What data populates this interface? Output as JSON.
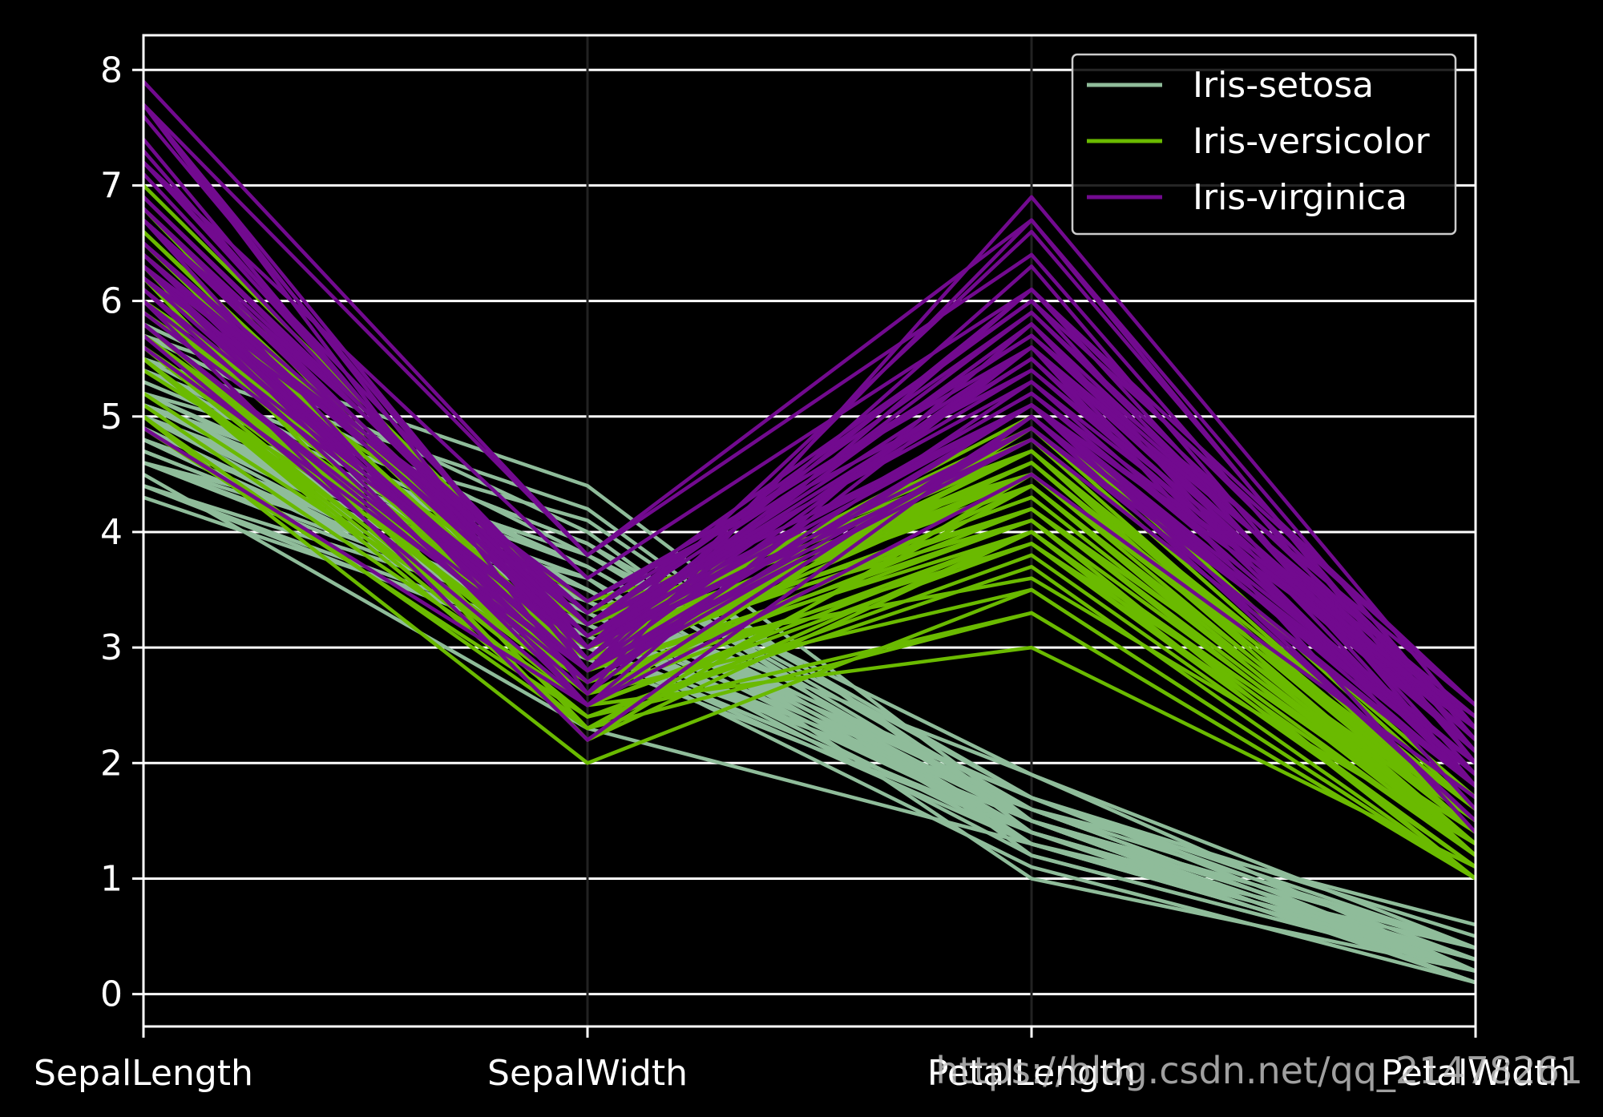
{
  "chart_data": {
    "type": "parallel_coordinates",
    "axes": [
      "SepalLength",
      "SepalWidth",
      "PetalLength",
      "PetalWidth"
    ],
    "y_ticks": [
      0,
      1,
      2,
      3,
      4,
      5,
      6,
      7,
      8
    ],
    "ylim": [
      -0.28,
      8.3
    ],
    "grid": true,
    "legend_position": "top-right",
    "background": "#000000",
    "series": [
      {
        "name": "Iris-setosa",
        "color": "#8fbc9a",
        "records": [
          [
            5.1,
            3.5,
            1.4,
            0.2
          ],
          [
            4.9,
            3.0,
            1.4,
            0.2
          ],
          [
            4.7,
            3.2,
            1.3,
            0.2
          ],
          [
            4.6,
            3.1,
            1.5,
            0.2
          ],
          [
            5.0,
            3.6,
            1.4,
            0.2
          ],
          [
            5.4,
            3.9,
            1.7,
            0.4
          ],
          [
            4.6,
            3.4,
            1.4,
            0.3
          ],
          [
            5.0,
            3.4,
            1.5,
            0.2
          ],
          [
            4.4,
            2.9,
            1.4,
            0.2
          ],
          [
            4.9,
            3.1,
            1.5,
            0.1
          ],
          [
            5.4,
            3.7,
            1.5,
            0.2
          ],
          [
            4.8,
            3.4,
            1.6,
            0.2
          ],
          [
            4.8,
            3.0,
            1.4,
            0.1
          ],
          [
            4.3,
            3.0,
            1.1,
            0.1
          ],
          [
            5.8,
            4.0,
            1.2,
            0.2
          ],
          [
            5.7,
            4.4,
            1.5,
            0.4
          ],
          [
            5.4,
            3.9,
            1.3,
            0.4
          ],
          [
            5.1,
            3.5,
            1.4,
            0.3
          ],
          [
            5.7,
            3.8,
            1.7,
            0.3
          ],
          [
            5.1,
            3.8,
            1.5,
            0.3
          ],
          [
            5.4,
            3.4,
            1.7,
            0.2
          ],
          [
            5.1,
            3.7,
            1.5,
            0.4
          ],
          [
            4.6,
            3.6,
            1.0,
            0.2
          ],
          [
            5.1,
            3.3,
            1.7,
            0.5
          ],
          [
            4.8,
            3.4,
            1.9,
            0.2
          ],
          [
            5.0,
            3.0,
            1.6,
            0.2
          ],
          [
            5.0,
            3.4,
            1.6,
            0.4
          ],
          [
            5.2,
            3.5,
            1.5,
            0.2
          ],
          [
            5.2,
            3.4,
            1.4,
            0.2
          ],
          [
            4.7,
            3.2,
            1.6,
            0.2
          ],
          [
            4.8,
            3.1,
            1.6,
            0.2
          ],
          [
            5.4,
            3.4,
            1.5,
            0.4
          ],
          [
            5.2,
            4.1,
            1.5,
            0.1
          ],
          [
            5.5,
            4.2,
            1.4,
            0.2
          ],
          [
            4.9,
            3.1,
            1.5,
            0.1
          ],
          [
            5.0,
            3.2,
            1.2,
            0.2
          ],
          [
            5.5,
            3.5,
            1.3,
            0.2
          ],
          [
            4.9,
            3.1,
            1.5,
            0.1
          ],
          [
            4.4,
            3.0,
            1.3,
            0.2
          ],
          [
            5.1,
            3.4,
            1.5,
            0.2
          ],
          [
            5.0,
            3.5,
            1.3,
            0.3
          ],
          [
            4.5,
            2.3,
            1.3,
            0.3
          ],
          [
            4.4,
            3.2,
            1.3,
            0.2
          ],
          [
            5.0,
            3.5,
            1.6,
            0.6
          ],
          [
            5.1,
            3.8,
            1.9,
            0.4
          ],
          [
            4.8,
            3.0,
            1.4,
            0.3
          ],
          [
            5.1,
            3.8,
            1.6,
            0.2
          ],
          [
            4.6,
            3.2,
            1.4,
            0.2
          ],
          [
            5.3,
            3.7,
            1.5,
            0.2
          ],
          [
            5.0,
            3.3,
            1.4,
            0.2
          ]
        ]
      },
      {
        "name": "Iris-versicolor",
        "color": "#6aba00",
        "records": [
          [
            7.0,
            3.2,
            4.7,
            1.4
          ],
          [
            6.4,
            3.2,
            4.5,
            1.5
          ],
          [
            6.9,
            3.1,
            4.9,
            1.5
          ],
          [
            5.5,
            2.3,
            4.0,
            1.3
          ],
          [
            6.5,
            2.8,
            4.6,
            1.5
          ],
          [
            5.7,
            2.8,
            4.5,
            1.3
          ],
          [
            6.3,
            3.3,
            4.7,
            1.6
          ],
          [
            4.9,
            2.4,
            3.3,
            1.0
          ],
          [
            6.6,
            2.9,
            4.6,
            1.3
          ],
          [
            5.2,
            2.7,
            3.9,
            1.4
          ],
          [
            5.0,
            2.0,
            3.5,
            1.0
          ],
          [
            5.9,
            3.0,
            4.2,
            1.5
          ],
          [
            6.0,
            2.2,
            4.0,
            1.0
          ],
          [
            6.1,
            2.9,
            4.7,
            1.4
          ],
          [
            5.6,
            2.9,
            3.6,
            1.3
          ],
          [
            6.7,
            3.1,
            4.4,
            1.4
          ],
          [
            5.6,
            3.0,
            4.5,
            1.5
          ],
          [
            5.8,
            2.7,
            4.1,
            1.0
          ],
          [
            6.2,
            2.2,
            4.5,
            1.5
          ],
          [
            5.6,
            2.5,
            3.9,
            1.1
          ],
          [
            5.9,
            3.2,
            4.8,
            1.8
          ],
          [
            6.1,
            2.8,
            4.0,
            1.3
          ],
          [
            6.3,
            2.5,
            4.9,
            1.5
          ],
          [
            6.1,
            2.8,
            4.7,
            1.2
          ],
          [
            6.4,
            2.9,
            4.3,
            1.3
          ],
          [
            6.6,
            3.0,
            4.4,
            1.4
          ],
          [
            6.8,
            2.8,
            4.8,
            1.4
          ],
          [
            6.7,
            3.0,
            5.0,
            1.7
          ],
          [
            6.0,
            2.9,
            4.5,
            1.5
          ],
          [
            5.7,
            2.6,
            3.5,
            1.0
          ],
          [
            5.5,
            2.4,
            3.8,
            1.1
          ],
          [
            5.5,
            2.4,
            3.7,
            1.0
          ],
          [
            5.8,
            2.7,
            3.9,
            1.2
          ],
          [
            6.0,
            2.7,
            5.1,
            1.6
          ],
          [
            5.4,
            3.0,
            4.5,
            1.5
          ],
          [
            6.0,
            3.4,
            4.5,
            1.6
          ],
          [
            6.7,
            3.1,
            4.7,
            1.5
          ],
          [
            6.3,
            2.3,
            4.4,
            1.3
          ],
          [
            5.6,
            3.0,
            4.1,
            1.3
          ],
          [
            5.5,
            2.5,
            4.0,
            1.3
          ],
          [
            5.5,
            2.6,
            4.4,
            1.2
          ],
          [
            6.1,
            3.0,
            4.6,
            1.4
          ],
          [
            5.8,
            2.6,
            4.0,
            1.2
          ],
          [
            5.0,
            2.3,
            3.3,
            1.0
          ],
          [
            5.6,
            2.7,
            4.2,
            1.3
          ],
          [
            5.7,
            3.0,
            4.2,
            1.2
          ],
          [
            5.7,
            2.9,
            4.2,
            1.3
          ],
          [
            6.2,
            2.9,
            4.3,
            1.3
          ],
          [
            5.1,
            2.5,
            3.0,
            1.1
          ],
          [
            5.7,
            2.8,
            4.1,
            1.3
          ]
        ]
      },
      {
        "name": "Iris-virginica",
        "color": "#720a8f",
        "records": [
          [
            6.3,
            3.3,
            6.0,
            2.5
          ],
          [
            5.8,
            2.7,
            5.1,
            1.9
          ],
          [
            7.1,
            3.0,
            5.9,
            2.1
          ],
          [
            6.3,
            2.9,
            5.6,
            1.8
          ],
          [
            6.5,
            3.0,
            5.8,
            2.2
          ],
          [
            7.6,
            3.0,
            6.6,
            2.1
          ],
          [
            4.9,
            2.5,
            4.5,
            1.7
          ],
          [
            7.3,
            2.9,
            6.3,
            1.8
          ],
          [
            6.7,
            2.5,
            5.8,
            1.8
          ],
          [
            7.2,
            3.6,
            6.1,
            2.5
          ],
          [
            6.5,
            3.2,
            5.1,
            2.0
          ],
          [
            6.4,
            2.7,
            5.3,
            1.9
          ],
          [
            6.8,
            3.0,
            5.5,
            2.1
          ],
          [
            5.7,
            2.5,
            5.0,
            2.0
          ],
          [
            5.8,
            2.8,
            5.1,
            2.4
          ],
          [
            6.4,
            3.2,
            5.3,
            2.3
          ],
          [
            6.5,
            3.0,
            5.5,
            1.8
          ],
          [
            7.7,
            3.8,
            6.7,
            2.2
          ],
          [
            7.7,
            2.6,
            6.9,
            2.3
          ],
          [
            6.0,
            2.2,
            5.0,
            1.5
          ],
          [
            6.9,
            3.2,
            5.7,
            2.3
          ],
          [
            5.6,
            2.8,
            4.9,
            2.0
          ],
          [
            7.7,
            2.8,
            6.7,
            2.0
          ],
          [
            6.3,
            2.7,
            4.9,
            1.8
          ],
          [
            6.7,
            3.3,
            5.7,
            2.1
          ],
          [
            7.2,
            3.2,
            6.0,
            1.8
          ],
          [
            6.2,
            2.8,
            4.8,
            1.8
          ],
          [
            6.1,
            3.0,
            4.9,
            1.8
          ],
          [
            6.4,
            2.8,
            5.6,
            2.1
          ],
          [
            7.2,
            3.0,
            5.8,
            1.6
          ],
          [
            7.4,
            2.8,
            6.1,
            1.9
          ],
          [
            7.9,
            3.8,
            6.4,
            2.0
          ],
          [
            6.4,
            2.8,
            5.6,
            2.2
          ],
          [
            6.3,
            2.8,
            5.1,
            1.5
          ],
          [
            6.1,
            2.6,
            5.6,
            1.4
          ],
          [
            7.7,
            3.0,
            6.1,
            2.3
          ],
          [
            6.3,
            3.4,
            5.6,
            2.4
          ],
          [
            6.4,
            3.1,
            5.5,
            1.8
          ],
          [
            6.0,
            3.0,
            4.8,
            1.8
          ],
          [
            6.9,
            3.1,
            5.4,
            2.1
          ],
          [
            6.7,
            3.1,
            5.6,
            2.4
          ],
          [
            6.9,
            3.1,
            5.1,
            2.3
          ],
          [
            5.8,
            2.7,
            5.1,
            1.9
          ],
          [
            6.8,
            3.2,
            5.9,
            2.3
          ],
          [
            6.7,
            3.3,
            5.7,
            2.5
          ],
          [
            6.7,
            3.0,
            5.2,
            2.3
          ],
          [
            6.3,
            2.5,
            5.0,
            1.9
          ],
          [
            6.5,
            3.0,
            5.2,
            2.0
          ],
          [
            6.2,
            3.4,
            5.4,
            2.3
          ],
          [
            5.9,
            3.0,
            5.1,
            1.8
          ]
        ]
      }
    ],
    "watermark": "https://blog.csdn.net/qq_21478261"
  }
}
